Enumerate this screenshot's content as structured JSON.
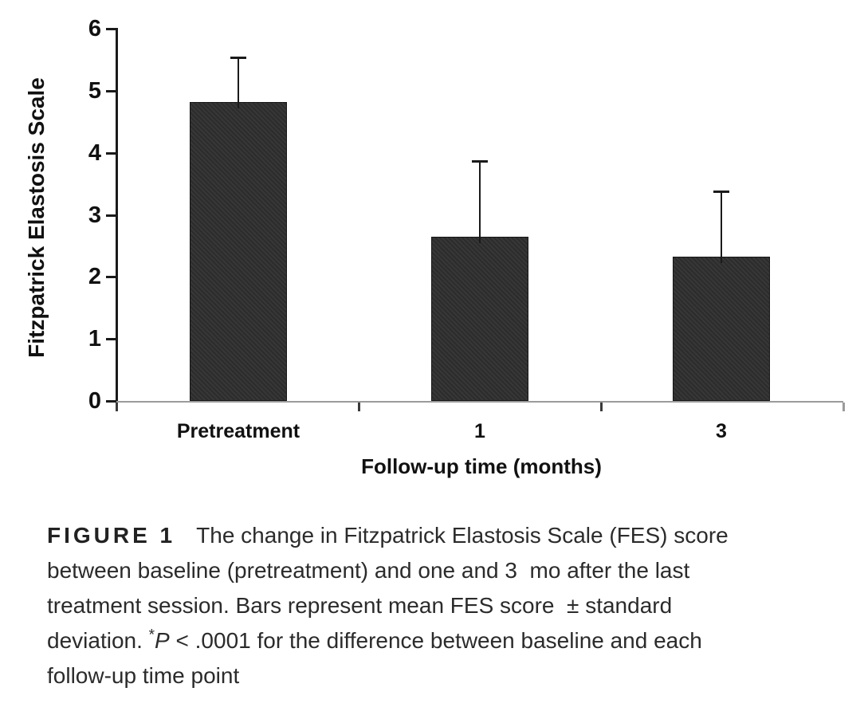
{
  "chart_data": {
    "type": "bar",
    "title": "",
    "categories": [
      "Pretreatment",
      "1",
      "3"
    ],
    "values": [
      4.82,
      2.65,
      2.33
    ],
    "sd_upper": [
      0.72,
      1.22,
      1.05
    ],
    "xlabel": "Follow-up time (months)",
    "ylabel": "Fitzpatrick Elastosis Scale",
    "ylim": [
      0,
      6
    ],
    "yticks": [
      0,
      1,
      2,
      3,
      4,
      5,
      6
    ],
    "grid": "off",
    "legend": "none",
    "bar_color": "#2e2e2e",
    "y_axis_color": "#1a1a1a",
    "x_axis_color": "#9b9b9b",
    "error_bar_style": "upper only, with caps"
  },
  "caption": {
    "label": "FIGURE 1",
    "line1": "The change in Fitzpatrick Elastosis Scale (FES) score",
    "line2": "between baseline (pretreatment) and one and 3  mo after the last",
    "line3": "treatment session. Bars represent mean FES score  ± standard",
    "line4_pre": "deviation. ",
    "line4_sup": "*",
    "line4_italic": "P",
    "line4_post": " < .0001 for the difference between baseline and each",
    "line5": "follow-up time point"
  }
}
